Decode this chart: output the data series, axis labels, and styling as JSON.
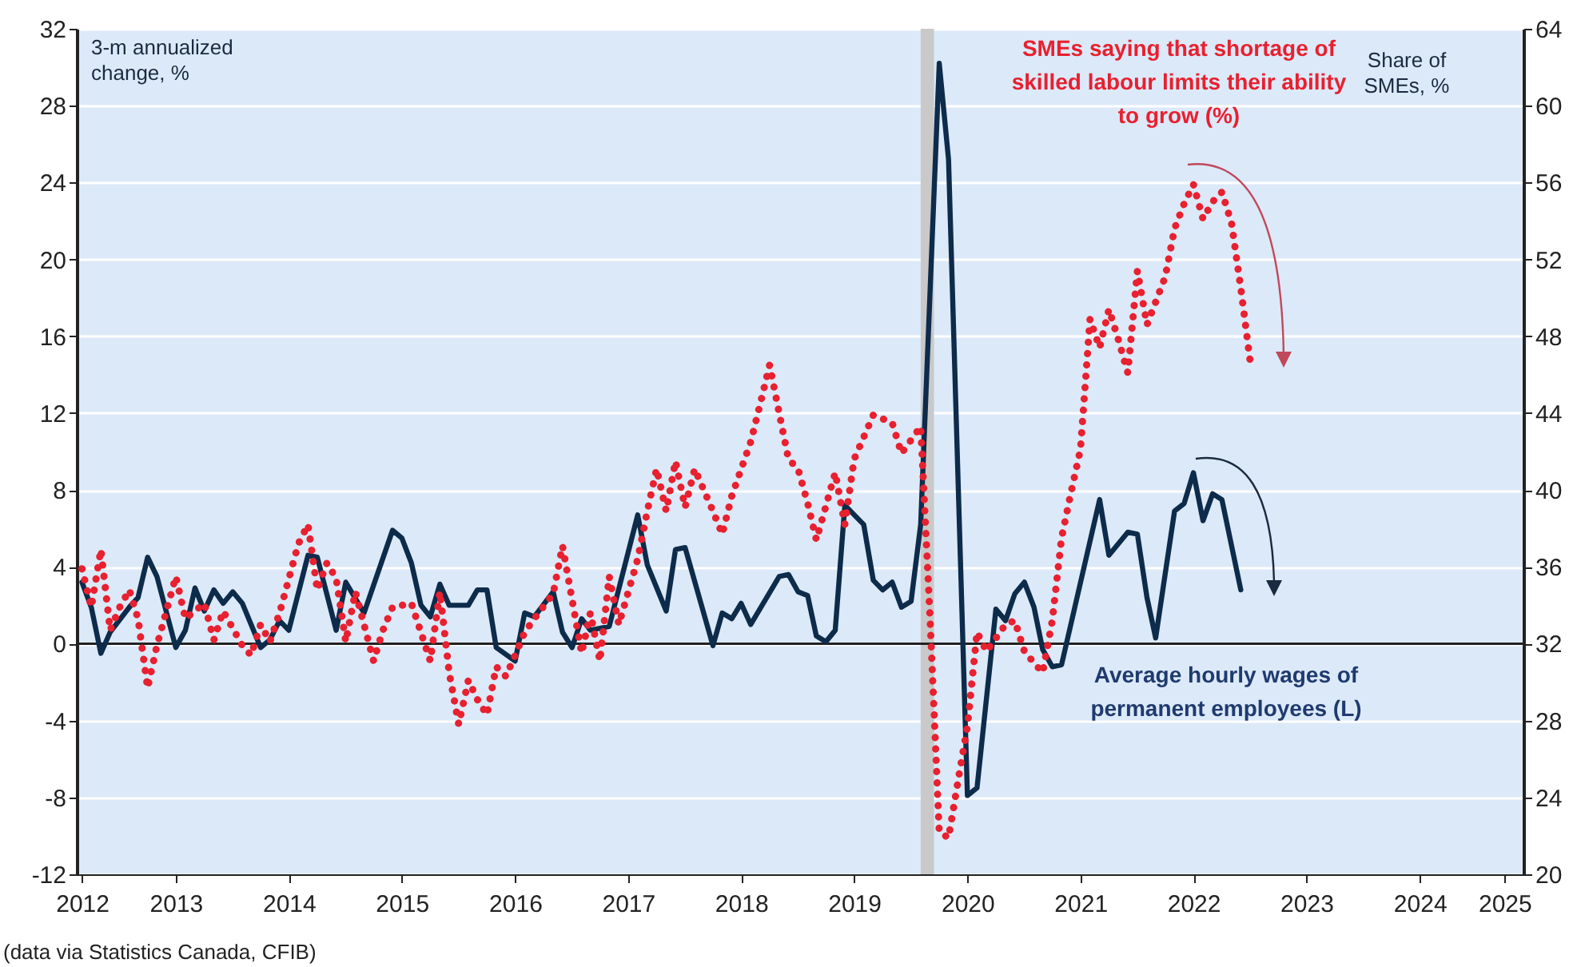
{
  "chart_data": {
    "type": "line",
    "ylabel": "3-m annualized change, %",
    "y2label": "Share of SMEs, %",
    "annotations": [
      "(data via Statistics Canada, CFIB)"
    ],
    "xlim": [
      "2012-08-15",
      "2025-06"
    ],
    "xticks": [
      {
        "value": "2012-09",
        "label": "2012"
      },
      {
        "value": "2013-07",
        "label": "2013"
      },
      {
        "value": "2014-07",
        "label": "2014"
      },
      {
        "value": "2015-07",
        "label": "2015"
      },
      {
        "value": "2016-07",
        "label": "2016"
      },
      {
        "value": "2017-07",
        "label": "2017"
      },
      {
        "value": "2018-07",
        "label": "2018"
      },
      {
        "value": "2019-07",
        "label": "2019"
      },
      {
        "value": "2020-07",
        "label": "2020"
      },
      {
        "value": "2021-07",
        "label": "2021"
      },
      {
        "value": "2022-07",
        "label": "2022"
      },
      {
        "value": "2023-07",
        "label": "2023"
      },
      {
        "value": "2024-07",
        "label": "2024"
      },
      {
        "value": "2025-04",
        "label": "2025"
      }
    ],
    "ylim": [
      -12,
      32
    ],
    "yticks": [
      -12,
      -8,
      -4,
      0,
      4,
      8,
      12,
      16,
      20,
      24,
      28,
      32
    ],
    "y2lim": [
      20,
      64
    ],
    "y2ticks": [
      20,
      24,
      28,
      32,
      36,
      40,
      44,
      48,
      52,
      56,
      60,
      64
    ],
    "grid": "y",
    "ref_lines": [
      {
        "axis": "y",
        "value": 0,
        "color": "#222222"
      }
    ],
    "bands": [
      {
        "axis": "x",
        "from": "2020-02",
        "to": "2020-03-15",
        "color": "#c9c9c9"
      }
    ],
    "series": [
      {
        "name": "Average hourly wages of permanent employees (L)",
        "type": "line",
        "color": "#0d2b4a",
        "line_style": "solid",
        "x": [
          "2012-09",
          "2012-10",
          "2012-11",
          "2012-12",
          "2013-02",
          "2013-03",
          "2013-04",
          "2013-05",
          "2013-07",
          "2013-08",
          "2013-09",
          "2013-10",
          "2013-11",
          "2013-12",
          "2014-01",
          "2014-02",
          "2014-04",
          "2014-05",
          "2014-06",
          "2014-07",
          "2014-09",
          "2014-10",
          "2014-12",
          "2015-01",
          "2015-03",
          "2015-06",
          "2015-07",
          "2015-08",
          "2015-09",
          "2015-10",
          "2015-11",
          "2015-12",
          "2016-02",
          "2016-03",
          "2016-04",
          "2016-05",
          "2016-07",
          "2016-08",
          "2016-09",
          "2016-11",
          "2016-12",
          "2017-01",
          "2017-02",
          "2017-03",
          "2017-05",
          "2017-08",
          "2017-09",
          "2017-11",
          "2017-12",
          "2018-01",
          "2018-04",
          "2018-05",
          "2018-06",
          "2018-07",
          "2018-08",
          "2018-11",
          "2018-12",
          "2019-01",
          "2019-02",
          "2019-03",
          "2019-04",
          "2019-05",
          "2019-06",
          "2019-08",
          "2019-09",
          "2019-10",
          "2019-11",
          "2019-12",
          "2020-01",
          "2020-02",
          "2020-04",
          "2020-05",
          "2020-07",
          "2020-08",
          "2020-10",
          "2020-11",
          "2020-12",
          "2021-01",
          "2021-02",
          "2021-03",
          "2021-04",
          "2021-05",
          "2021-09",
          "2021-10",
          "2021-12",
          "2022-01",
          "2022-02",
          "2022-03",
          "2022-05",
          "2022-06",
          "2022-07",
          "2022-08",
          "2022-09",
          "2022-10",
          "2022-12"
        ],
        "values": [
          3.2,
          1.9,
          -0.5,
          0.6,
          1.9,
          2.4,
          4.5,
          3.5,
          -0.2,
          0.7,
          2.9,
          1.7,
          2.8,
          2.1,
          2.7,
          2.1,
          -0.2,
          0.2,
          1.2,
          0.7,
          4.6,
          4.5,
          0.7,
          3.2,
          1.6,
          5.9,
          5.5,
          4.2,
          2.0,
          1.4,
          3.1,
          2.0,
          2.0,
          2.8,
          2.8,
          -0.2,
          -0.9,
          1.6,
          1.4,
          2.7,
          0.6,
          -0.2,
          1.3,
          0.7,
          0.9,
          6.7,
          4.1,
          1.7,
          4.9,
          5.0,
          -0.1,
          1.6,
          1.3,
          2.1,
          1.0,
          3.5,
          3.6,
          2.7,
          2.5,
          0.4,
          0.1,
          0.7,
          7.2,
          6.2,
          3.3,
          2.8,
          3.2,
          1.9,
          2.2,
          6.2,
          30.2,
          25.2,
          -7.9,
          -7.5,
          1.8,
          1.2,
          2.6,
          3.2,
          1.9,
          -0.3,
          -1.2,
          -1.1,
          7.5,
          4.6,
          5.8,
          5.7,
          2.4,
          0.3,
          6.9,
          7.3,
          8.9,
          6.4,
          7.8,
          7.5,
          2.8
        ]
      },
      {
        "name": "SMEs saying that shortage of skilled labour limits their ability to grow (%)",
        "type": "line",
        "axis": "y2",
        "color": "#e8202f",
        "line_style": "dotted",
        "x": [
          "2012-09",
          "2012-10",
          "2012-11",
          "2012-12",
          "2013-01",
          "2013-02",
          "2013-03",
          "2013-04",
          "2013-05",
          "2013-07",
          "2013-08",
          "2013-10",
          "2013-11",
          "2013-12",
          "2014-02",
          "2014-03",
          "2014-04",
          "2014-05",
          "2014-06",
          "2014-08",
          "2014-09",
          "2014-10",
          "2014-11",
          "2014-12",
          "2015-01",
          "2015-02",
          "2015-04",
          "2015-05",
          "2015-06",
          "2015-08",
          "2015-10",
          "2015-11",
          "2015-12",
          "2016-01",
          "2016-02",
          "2016-03",
          "2016-04",
          "2016-05",
          "2016-06",
          "2016-07",
          "2016-08",
          "2016-09",
          "2016-11",
          "2016-12",
          "2017-02",
          "2017-03",
          "2017-04",
          "2017-05",
          "2017-06",
          "2017-08",
          "2017-09",
          "2017-10",
          "2017-11",
          "2017-12",
          "2018-01",
          "2018-02",
          "2018-04",
          "2018-05",
          "2018-06",
          "2018-08",
          "2018-09",
          "2018-10",
          "2018-11",
          "2018-12",
          "2019-01",
          "2019-02",
          "2019-03",
          "2019-05",
          "2019-06",
          "2019-07",
          "2019-09",
          "2019-11",
          "2019-12",
          "2020-02",
          "2020-03",
          "2020-04",
          "2020-05",
          "2020-06",
          "2020-07",
          "2020-08",
          "2020-09",
          "2020-11",
          "2020-12",
          "2021-01",
          "2021-02",
          "2021-03",
          "2021-04",
          "2021-05",
          "2021-06",
          "2021-07",
          "2021-08",
          "2021-09",
          "2021-10",
          "2021-11",
          "2021-12",
          "2022-01",
          "2022-02",
          "2022-04",
          "2022-05",
          "2022-06",
          "2022-07",
          "2022-08",
          "2022-09",
          "2022-10",
          "2022-11",
          "2022-12",
          "2023-01"
        ],
        "values": [
          35.9,
          33.9,
          36.9,
          32.7,
          33.9,
          34.8,
          33.3,
          29.7,
          31.9,
          35.5,
          33.3,
          34.1,
          32.2,
          33.7,
          31.9,
          31.4,
          33.0,
          32.1,
          33.6,
          37.2,
          38.2,
          34.8,
          36.2,
          35.4,
          32.1,
          34.7,
          31.1,
          32.7,
          33.9,
          34.1,
          31.1,
          34.7,
          30.5,
          27.8,
          30.1,
          29.1,
          28.3,
          30.8,
          30.3,
          31.4,
          32.6,
          33.3,
          34.6,
          37.1,
          31.5,
          33.6,
          31.1,
          35.5,
          33.0,
          36.4,
          38.9,
          41.1,
          38.9,
          41.5,
          39.1,
          41.1,
          38.9,
          37.7,
          39.7,
          42.5,
          44.5,
          46.5,
          44.0,
          41.6,
          41.1,
          39.3,
          37.4,
          40.9,
          38.2,
          41.6,
          43.9,
          43.5,
          41.9,
          43.3,
          33.8,
          22.2,
          21.9,
          24.9,
          27.7,
          32.6,
          31.6,
          33.0,
          33.2,
          31.6,
          31.0,
          30.5,
          33.2,
          37.5,
          39.9,
          42.1,
          48.9,
          47.4,
          49.4,
          47.8,
          46.1,
          51.4,
          48.6,
          51.1,
          53.6,
          54.9,
          55.9,
          54.1,
          55.0,
          55.5,
          53.9,
          50.5,
          46.6
        ]
      }
    ]
  }
}
